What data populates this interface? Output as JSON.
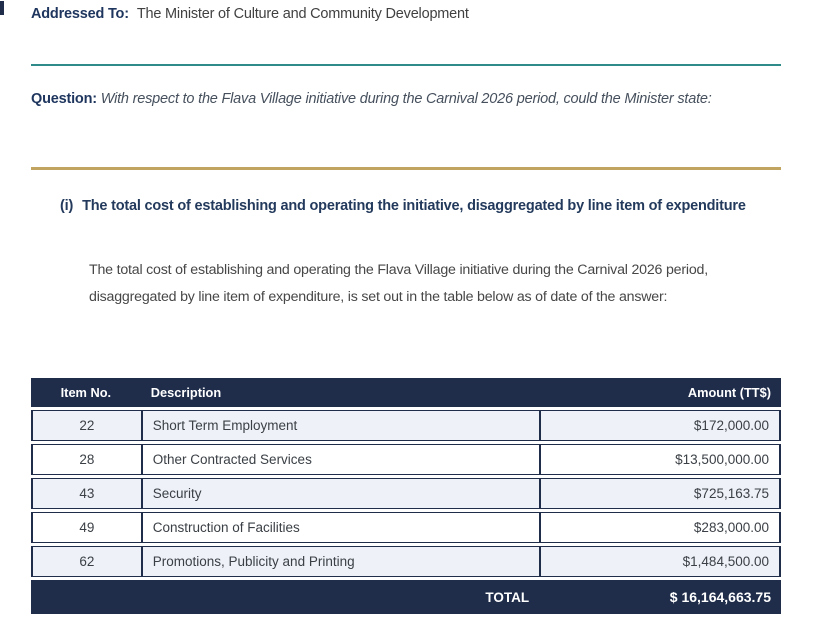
{
  "page": {
    "addressed_to_label": "Addressed To:",
    "addressed_to_value": "The Minister of Culture and Community Development",
    "question_label": "Question:",
    "question_text": "With respect to the Flava Village initiative during the Carnival 2026 period, could the Minister state:",
    "section": {
      "marker": "(i)",
      "heading": "The total cost of establishing and operating the initiative, disaggregated by line item of expenditure",
      "body": "The total cost of establishing and operating the Flava Village initiative during the Carnival 2026 period, disaggregated by line item of expenditure, is set out in the table below as of date of the answer:"
    }
  },
  "table": {
    "columns": {
      "item_no": "Item No.",
      "description": "Description",
      "amount": "Amount (TT$)"
    },
    "rows": [
      {
        "item_no": "22",
        "description": "Short Term Employment",
        "amount": "$172,000.00"
      },
      {
        "item_no": "28",
        "description": "Other Contracted Services",
        "amount": "$13,500,000.00"
      },
      {
        "item_no": "43",
        "description": "Security",
        "amount": "$725,163.75"
      },
      {
        "item_no": "49",
        "description": "Construction of Facilities",
        "amount": "$283,000.00"
      },
      {
        "item_no": "62",
        "description": "Promotions, Publicity and Printing",
        "amount": "$1,484,500.00"
      }
    ],
    "total_label": "TOTAL",
    "total_amount": "$ 16,164,663.75"
  },
  "colors": {
    "navy": "#1f2c4a",
    "navy_text": "#1e355e",
    "teal_rule": "#2e8b8a",
    "gold_rule": "#c1a45f",
    "row_alt_bg": "#eef2f8",
    "body_text": "#474747"
  }
}
